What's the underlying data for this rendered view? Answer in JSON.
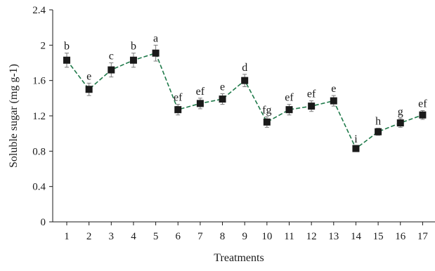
{
  "chart_data": {
    "type": "line",
    "xlabel": "Treatments",
    "ylabel": "Soluble sugar (mg g-1)",
    "x": [
      1,
      2,
      3,
      4,
      5,
      6,
      7,
      8,
      9,
      10,
      11,
      12,
      13,
      14,
      15,
      16,
      17
    ],
    "x_tick_labels": [
      "1",
      "2",
      "3",
      "4",
      "5",
      "6",
      "7",
      "8",
      "9",
      "10",
      "11",
      "12",
      "13",
      "14",
      "15",
      "16",
      "17"
    ],
    "ylim": [
      0,
      2.4
    ],
    "y_ticks": [
      0,
      0.4,
      0.8,
      1.2,
      1.6,
      2.0,
      2.4
    ],
    "y_tick_labels": [
      "0",
      "0.4",
      "0.8",
      "1.2",
      "1.6",
      "2",
      "2.4"
    ],
    "grid": false,
    "series": [
      {
        "values": [
          1.83,
          1.5,
          1.72,
          1.83,
          1.91,
          1.27,
          1.34,
          1.39,
          1.6,
          1.13,
          1.27,
          1.31,
          1.37,
          0.83,
          1.02,
          1.12,
          1.21
        ],
        "errors": [
          0.08,
          0.07,
          0.08,
          0.08,
          0.09,
          0.06,
          0.06,
          0.06,
          0.07,
          0.06,
          0.06,
          0.06,
          0.06,
          0.03,
          0.04,
          0.05,
          0.05
        ],
        "significance_labels": [
          "b",
          "e",
          "c",
          "b",
          "a",
          "ef",
          "ef",
          "e",
          "d",
          "fg",
          "ef",
          "ef",
          "e",
          "i",
          "h",
          "g",
          "ef"
        ],
        "color": "#1f7a4a",
        "line_style": "dashed",
        "marker": "square",
        "marker_color": "#1a1a1a"
      }
    ]
  }
}
